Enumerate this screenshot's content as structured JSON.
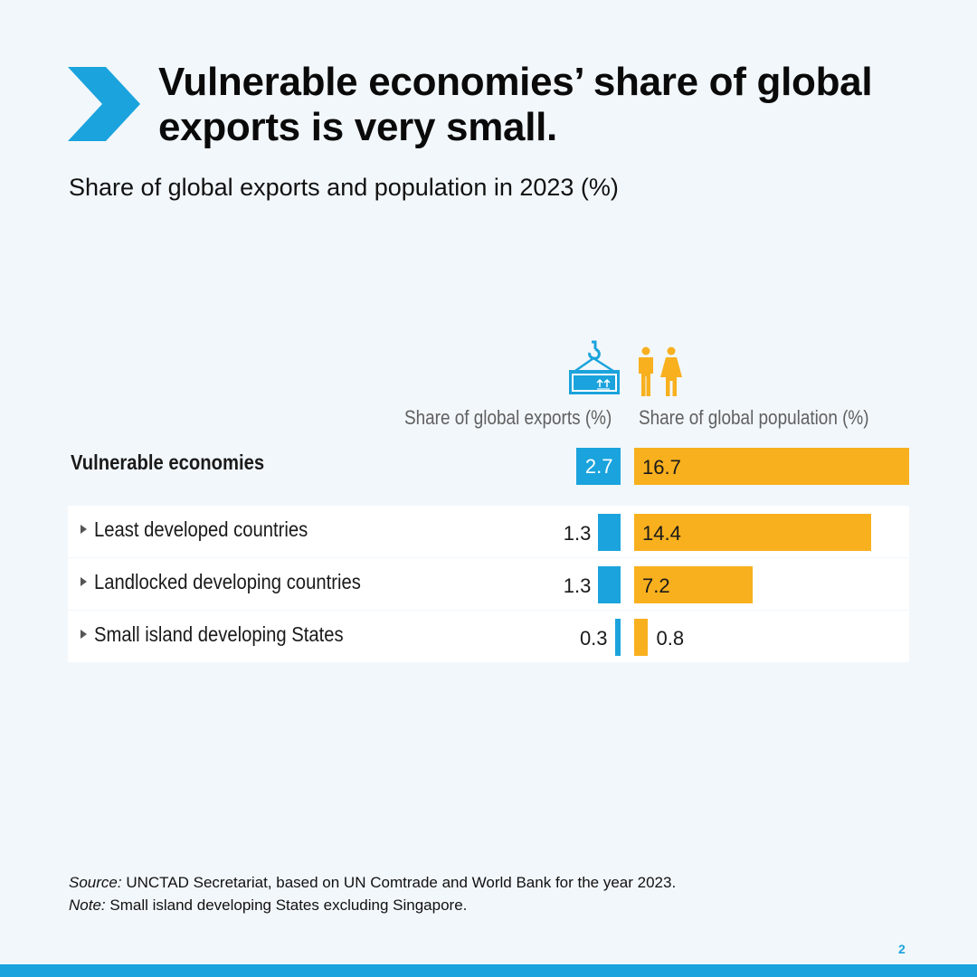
{
  "title": "Vulnerable economies’ share of global exports is very small.",
  "subtitle": "Share of global exports and population in 2023 (%)",
  "colors": {
    "exports": "#1aa3dc",
    "population": "#f8b01e",
    "accent": "#1aa3dc"
  },
  "icons": {
    "exports": "shipping-container-icon",
    "population": "people-icon"
  },
  "chart_data": {
    "type": "bar",
    "orientation": "horizontal-diverging",
    "title": "Share of global exports and population in 2023 (%)",
    "categories": [
      "Vulnerable economies",
      "Least developed countries",
      "Landlocked developing countries",
      "Small island developing States"
    ],
    "series": [
      {
        "name": "Share of global exports (%)",
        "values": [
          2.7,
          1.3,
          1.3,
          0.3
        ]
      },
      {
        "name": "Share of global population (%)",
        "values": [
          16.7,
          14.4,
          7.2,
          0.8
        ]
      }
    ],
    "value_labels": {
      "exports": [
        "2.7",
        "1.3",
        "1.3",
        "0.3"
      ],
      "population": [
        "16.7",
        "14.4",
        "7.2",
        "0.8"
      ]
    }
  },
  "footnotes": {
    "source_label": "Source:",
    "source_text": " UNCTAD Secretariat, based on UN Comtrade and World Bank for the year 2023.",
    "note_label": "Note:",
    "note_text": " Small island developing States excluding Singapore."
  },
  "page_number": "2"
}
